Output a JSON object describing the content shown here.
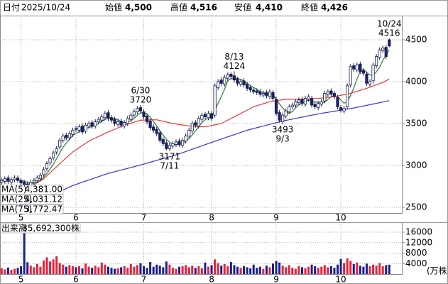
{
  "header": {
    "items": [
      {
        "label": "日付",
        "value": "2025/10/24",
        "color": "#000000"
      },
      {
        "label": "始値",
        "value": "4,500",
        "color": "#000000"
      },
      {
        "label": "高値",
        "value": "4,516",
        "color": "#e00000"
      },
      {
        "label": "安値",
        "value": "4,410",
        "color": "#008000"
      },
      {
        "label": "終値",
        "value": "4,426",
        "color": "#000000"
      }
    ]
  },
  "chart_data": {
    "type": "candlestick",
    "categories": [
      null,
      null,
      null,
      null,
      null,
      null,
      "5",
      null,
      null,
      null,
      null,
      null,
      null,
      null,
      null,
      null,
      null,
      null,
      null,
      null,
      null,
      null,
      null,
      "6",
      null,
      null,
      null,
      null,
      null,
      null,
      null,
      null,
      null,
      null,
      null,
      null,
      null,
      null,
      null,
      null,
      null,
      null,
      null,
      null,
      "7",
      null,
      null,
      null,
      null,
      null,
      null,
      null,
      null,
      null,
      null,
      null,
      null,
      null,
      null,
      null,
      null,
      null,
      null,
      null,
      null,
      "8",
      null,
      null,
      null,
      null,
      null,
      null,
      null,
      null,
      null,
      null,
      null,
      null,
      null,
      null,
      null,
      null,
      null,
      null,
      null,
      "9",
      null,
      null,
      null,
      null,
      null,
      null,
      null,
      null,
      null,
      null,
      null,
      null,
      null,
      null,
      null,
      null,
      null,
      null,
      null,
      "10",
      null,
      null,
      null,
      null,
      null,
      null,
      null,
      null,
      null,
      null,
      null,
      null,
      null,
      null,
      null
    ],
    "open": [
      2800,
      2810,
      2850,
      2800,
      2830,
      2850,
      2820,
      2800,
      2780,
      2760,
      2800,
      2820,
      2840,
      2890,
      2960,
      3030,
      3090,
      3160,
      3220,
      3300,
      3360,
      3330,
      3370,
      3440,
      3420,
      3470,
      3410,
      3470,
      3510,
      3470,
      3520,
      3540,
      3570,
      3630,
      3570,
      3550,
      3490,
      3530,
      3470,
      3500,
      3550,
      3600,
      3640,
      3690,
      3640,
      3590,
      3530,
      3460,
      3430,
      3390,
      3310,
      3270,
      3200,
      3230,
      3250,
      3290,
      3240,
      3290,
      3350,
      3410,
      3510,
      3470,
      3550,
      3610,
      3570,
      3620,
      3600,
      3930,
      4020,
      3970,
      4040,
      4090,
      4070,
      4030,
      3970,
      4010,
      3970,
      3930,
      3900,
      3890,
      3880,
      3840,
      3870,
      3820,
      3870,
      3790,
      3630,
      3520,
      3590,
      3640,
      3700,
      3720,
      3750,
      3790,
      3730,
      3790,
      3800,
      3730,
      3690,
      3730,
      3770,
      3850,
      3890,
      3860,
      3810,
      3690,
      3650,
      3700,
      3960,
      4190,
      4140,
      4210,
      4130,
      4090,
      3970,
      4010,
      4190,
      4290,
      4370,
      4410,
      4500
    ],
    "high": [
      2850,
      2870,
      2880,
      2860,
      2880,
      2880,
      2850,
      2830,
      2810,
      2830,
      2850,
      2880,
      2910,
      2980,
      3050,
      3110,
      3180,
      3230,
      3330,
      3380,
      3390,
      3410,
      3450,
      3470,
      3490,
      3500,
      3510,
      3530,
      3540,
      3550,
      3580,
      3610,
      3650,
      3660,
      3600,
      3580,
      3550,
      3560,
      3540,
      3590,
      3630,
      3670,
      3710,
      3720,
      3670,
      3620,
      3560,
      3490,
      3460,
      3420,
      3340,
      3300,
      3270,
      3290,
      3310,
      3320,
      3330,
      3380,
      3450,
      3530,
      3540,
      3590,
      3630,
      3640,
      3650,
      3650,
      3980,
      4030,
      4050,
      4080,
      4110,
      4110,
      4124,
      4060,
      4030,
      4040,
      4000,
      3960,
      3930,
      3920,
      3910,
      3890,
      3900,
      3910,
      3900,
      3820,
      3660,
      3630,
      3680,
      3730,
      3750,
      3790,
      3810,
      3820,
      3830,
      3850,
      3830,
      3760,
      3770,
      3790,
      3890,
      3910,
      3920,
      3890,
      3840,
      3720,
      3710,
      3980,
      4210,
      4220,
      4230,
      4240,
      4160,
      4120,
      4030,
      4230,
      4330,
      4410,
      4430,
      4440,
      4516
    ],
    "low": [
      2770,
      2780,
      2780,
      2770,
      2800,
      2790,
      2760,
      2740,
      2730,
      2730,
      2770,
      2790,
      2810,
      2860,
      2930,
      3000,
      3060,
      3130,
      3190,
      3270,
      3300,
      3300,
      3340,
      3400,
      3390,
      3370,
      3380,
      3440,
      3440,
      3440,
      3490,
      3510,
      3540,
      3530,
      3510,
      3470,
      3460,
      3450,
      3440,
      3470,
      3520,
      3570,
      3610,
      3620,
      3550,
      3490,
      3420,
      3390,
      3350,
      3270,
      3230,
      3180,
      3171,
      3200,
      3220,
      3220,
      3210,
      3260,
      3320,
      3380,
      3450,
      3440,
      3520,
      3550,
      3540,
      3530,
      3570,
      3900,
      3950,
      3940,
      4010,
      4030,
      3990,
      3950,
      3940,
      3930,
      3890,
      3870,
      3850,
      3840,
      3820,
      3810,
      3800,
      3790,
      3770,
      3590,
      3510,
      3493,
      3560,
      3610,
      3670,
      3690,
      3720,
      3710,
      3700,
      3760,
      3690,
      3670,
      3660,
      3700,
      3740,
      3820,
      3820,
      3790,
      3670,
      3630,
      3620,
      3670,
      3930,
      4120,
      4110,
      4090,
      4070,
      3950,
      3940,
      3980,
      4160,
      4260,
      4340,
      4270,
      4410
    ],
    "close": [
      2820,
      2840,
      2810,
      2830,
      2850,
      2820,
      2790,
      2770,
      2760,
      2800,
      2820,
      2850,
      2880,
      2950,
      3020,
      3080,
      3150,
      3200,
      3300,
      3350,
      3330,
      3380,
      3420,
      3430,
      3460,
      3400,
      3480,
      3500,
      3470,
      3520,
      3550,
      3580,
      3620,
      3560,
      3540,
      3500,
      3520,
      3480,
      3510,
      3560,
      3600,
      3640,
      3680,
      3650,
      3580,
      3520,
      3450,
      3420,
      3380,
      3300,
      3260,
      3200,
      3240,
      3260,
      3280,
      3250,
      3300,
      3350,
      3420,
      3500,
      3480,
      3560,
      3600,
      3580,
      3620,
      3560,
      3950,
      4000,
      3980,
      4050,
      4080,
      4060,
      4020,
      3980,
      4000,
      3960,
      3920,
      3900,
      3880,
      3870,
      3850,
      3860,
      3830,
      3880,
      3800,
      3620,
      3540,
      3600,
      3650,
      3700,
      3720,
      3760,
      3780,
      3740,
      3800,
      3820,
      3720,
      3700,
      3740,
      3760,
      3860,
      3880,
      3850,
      3820,
      3700,
      3660,
      3680,
      3950,
      4180,
      4150,
      4200,
      4120,
      4100,
      3980,
      4000,
      4200,
      4300,
      4380,
      4400,
      4300,
      4426
    ],
    "up_color": "#ffffff",
    "down_color": "#1b1f6b",
    "edge_color": "#1b1f50",
    "ylim": [
      2432,
      4788
    ],
    "yticks": [
      2500,
      3000,
      3500,
      4000,
      4500
    ],
    "grid": true,
    "series": [
      {
        "name": "MA(5)",
        "color": "#2e7d32",
        "last_label": "4,381.00",
        "values": [
          2825,
          2830,
          2825,
          2828,
          2830,
          2830,
          2820,
          2812,
          2798,
          2788,
          2788,
          2800,
          2822,
          2860,
          2904,
          2956,
          3016,
          3080,
          3150,
          3216,
          3266,
          3312,
          3356,
          3382,
          3404,
          3418,
          3438,
          3454,
          3462,
          3474,
          3504,
          3524,
          3548,
          3566,
          3570,
          3560,
          3548,
          3520,
          3510,
          3514,
          3534,
          3558,
          3598,
          3626,
          3630,
          3614,
          3576,
          3524,
          3470,
          3414,
          3362,
          3312,
          3276,
          3252,
          3248,
          3246,
          3266,
          3288,
          3320,
          3364,
          3410,
          3462,
          3512,
          3544,
          3568,
          3584,
          3662,
          3742,
          3822,
          3908,
          4012,
          4034,
          4038,
          4038,
          4028,
          4004,
          3976,
          3952,
          3932,
          3906,
          3884,
          3872,
          3858,
          3858,
          3844,
          3798,
          3734,
          3688,
          3642,
          3622,
          3642,
          3686,
          3722,
          3740,
          3760,
          3780,
          3772,
          3756,
          3756,
          3748,
          3756,
          3788,
          3818,
          3834,
          3822,
          3782,
          3742,
          3762,
          3834,
          3924,
          4032,
          4120,
          4150,
          4110,
          4080,
          4080,
          4116,
          4172,
          4256,
          4316,
          4381
        ]
      },
      {
        "name": "MA(25)",
        "color": "#e53935",
        "last_label": "4,031.12",
        "values": [
          null,
          null,
          null,
          null,
          null,
          null,
          null,
          null,
          2720,
          2744,
          2768,
          2792,
          2816,
          2840,
          2876,
          2912,
          2948,
          2984,
          3020,
          3055,
          3090,
          3125,
          3160,
          3186,
          3212,
          3238,
          3264,
          3290,
          3308,
          3327,
          3345,
          3363,
          3382,
          3400,
          3416,
          3432,
          3448,
          3464,
          3480,
          3492,
          3504,
          3516,
          3528,
          3540,
          3541,
          3542,
          3543,
          3544,
          3545,
          3536,
          3527,
          3518,
          3509,
          3500,
          3494,
          3488,
          3482,
          3476,
          3470,
          3468,
          3466,
          3464,
          3462,
          3460,
          3468,
          3476,
          3484,
          3492,
          3500,
          3520,
          3540,
          3560,
          3580,
          3600,
          3620,
          3640,
          3660,
          3680,
          3700,
          3712,
          3724,
          3736,
          3748,
          3760,
          3766,
          3772,
          3778,
          3784,
          3790,
          3790,
          3790,
          3790,
          3790,
          3790,
          3792,
          3794,
          3796,
          3798,
          3800,
          3804,
          3808,
          3812,
          3816,
          3820,
          3828,
          3836,
          3844,
          3852,
          3860,
          3872,
          3884,
          3896,
          3908,
          3920,
          3934,
          3948,
          3962,
          3976,
          3990,
          4010,
          4031.12
        ]
      },
      {
        "name": "MA(75)",
        "color": "#3333dd",
        "last_label": "3,772.47",
        "values": [
          2470,
          2480,
          2490,
          2500,
          2510,
          2520,
          2530,
          2540,
          2550,
          2560,
          2570,
          2580,
          2590,
          2600,
          2618,
          2636,
          2653,
          2671,
          2689,
          2707,
          2724,
          2742,
          2760,
          2773,
          2786,
          2800,
          2813,
          2826,
          2839,
          2852,
          2866,
          2879,
          2892,
          2905,
          2915,
          2925,
          2935,
          2945,
          2955,
          2965,
          2975,
          2985,
          2995,
          3005,
          3016,
          3027,
          3038,
          3049,
          3060,
          3071,
          3082,
          3092,
          3103,
          3114,
          3125,
          3139,
          3152,
          3166,
          3180,
          3193,
          3207,
          3220,
          3234,
          3248,
          3261,
          3275,
          3288,
          3301,
          3315,
          3328,
          3341,
          3354,
          3367,
          3381,
          3394,
          3407,
          3420,
          3430,
          3440,
          3450,
          3460,
          3470,
          3480,
          3490,
          3500,
          3510,
          3520,
          3530,
          3538,
          3545,
          3553,
          3561,
          3569,
          3576,
          3584,
          3592,
          3600,
          3607,
          3615,
          3621,
          3628,
          3634,
          3640,
          3647,
          3653,
          3660,
          3666,
          3672,
          3679,
          3685,
          3693,
          3701,
          3709,
          3717,
          3725,
          3733,
          3741,
          3749,
          3757,
          3765,
          3772.47
        ]
      }
    ],
    "annotations": [
      {
        "date": "6/30",
        "value": 3720
      },
      {
        "date": "7/11",
        "value": 3171
      },
      {
        "date": "8/13",
        "value": 4124
      },
      {
        "date": "9/3",
        "value": 3493
      },
      {
        "date": "10/24",
        "value": 4516
      }
    ],
    "volume": {
      "title": "出来高",
      "last_label": "35,692,300株",
      "unit": "(万株)",
      "ylim": [
        0,
        19800
      ],
      "yticks": [
        4000,
        8000,
        12000,
        16000
      ],
      "up_color": "#e8213a",
      "down_color": "#1b1f8a",
      "values": [
        2200,
        1800,
        2500,
        1600,
        2000,
        2400,
        3000,
        15600,
        4500,
        3200,
        2600,
        3800,
        2800,
        5200,
        6400,
        4800,
        5600,
        6800,
        4200,
        3600,
        2800,
        3400,
        3000,
        2600,
        3000,
        2200,
        4000,
        2800,
        2400,
        3200,
        2600,
        4400,
        3600,
        2800,
        2400,
        2000,
        2200,
        2600,
        3000,
        2400,
        3800,
        2800,
        3400,
        4200,
        3000,
        2400,
        4600,
        2800,
        3600,
        3200,
        2600,
        4800,
        3600,
        2400,
        2000,
        2800,
        3000,
        3400,
        2600,
        3200,
        2400,
        3000,
        2200,
        4400,
        2800,
        3400,
        5600,
        4200,
        3200,
        3800,
        3000,
        4600,
        3400,
        2800,
        2400,
        3000,
        2600,
        2200,
        3600,
        2400,
        2800,
        2000,
        3200,
        2600,
        4000,
        5000,
        4400,
        3200,
        2600,
        3400,
        2400,
        2000,
        3000,
        2600,
        2200,
        2800,
        3600,
        3000,
        2400,
        2800,
        3400,
        2600,
        3000,
        2400,
        3600,
        5800,
        4200,
        6000,
        5000,
        3800,
        4400,
        3200,
        2800,
        4000,
        3000,
        3600,
        3200,
        4200,
        3000,
        3400,
        3569.23
      ]
    }
  }
}
